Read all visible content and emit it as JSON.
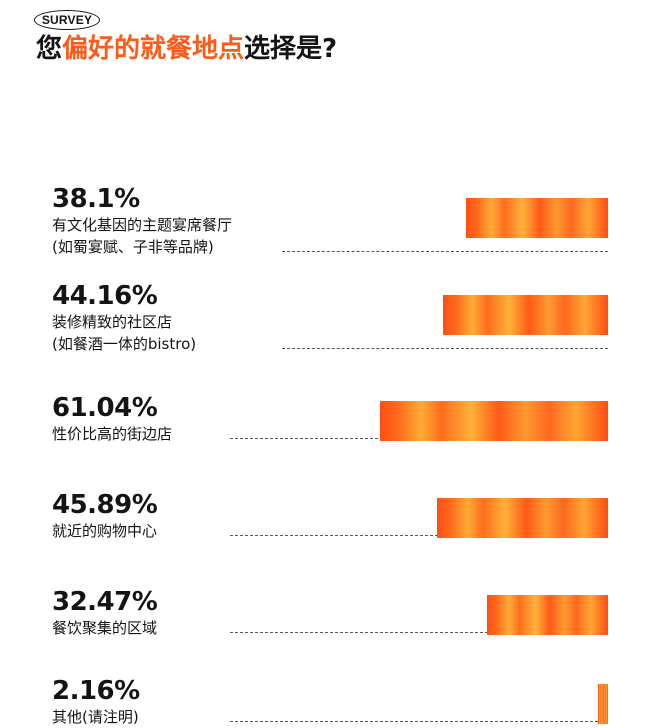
{
  "badge": "SURVEY",
  "title": {
    "prefix": "您",
    "highlight": "偏好的就餐地点",
    "suffix": "选择是?"
  },
  "colors": {
    "accent": "#ff5a1a",
    "bar_start": "#ff4f14",
    "bar_mid": "#ffab36"
  },
  "chart_data": {
    "type": "bar",
    "orientation": "horizontal",
    "value_unit": "%",
    "categories": [
      "有文化基因的主题宴席餐厅\n(如蜀宴赋、子非等品牌)",
      "装修精致的社区店\n(如餐酒一体的bistro)",
      "性价比高的街边店",
      "就近的购物中心",
      "餐饮聚集的区域",
      "其他(请注明)"
    ],
    "values": [
      38.1,
      44.16,
      61.04,
      45.89,
      32.47,
      2.16
    ],
    "value_labels": [
      "38.1%",
      "44.16%",
      "61.04%",
      "45.89%",
      "32.47%",
      "2.16%"
    ],
    "xlim": [
      0,
      100
    ],
    "grid": false,
    "legend": "none"
  }
}
